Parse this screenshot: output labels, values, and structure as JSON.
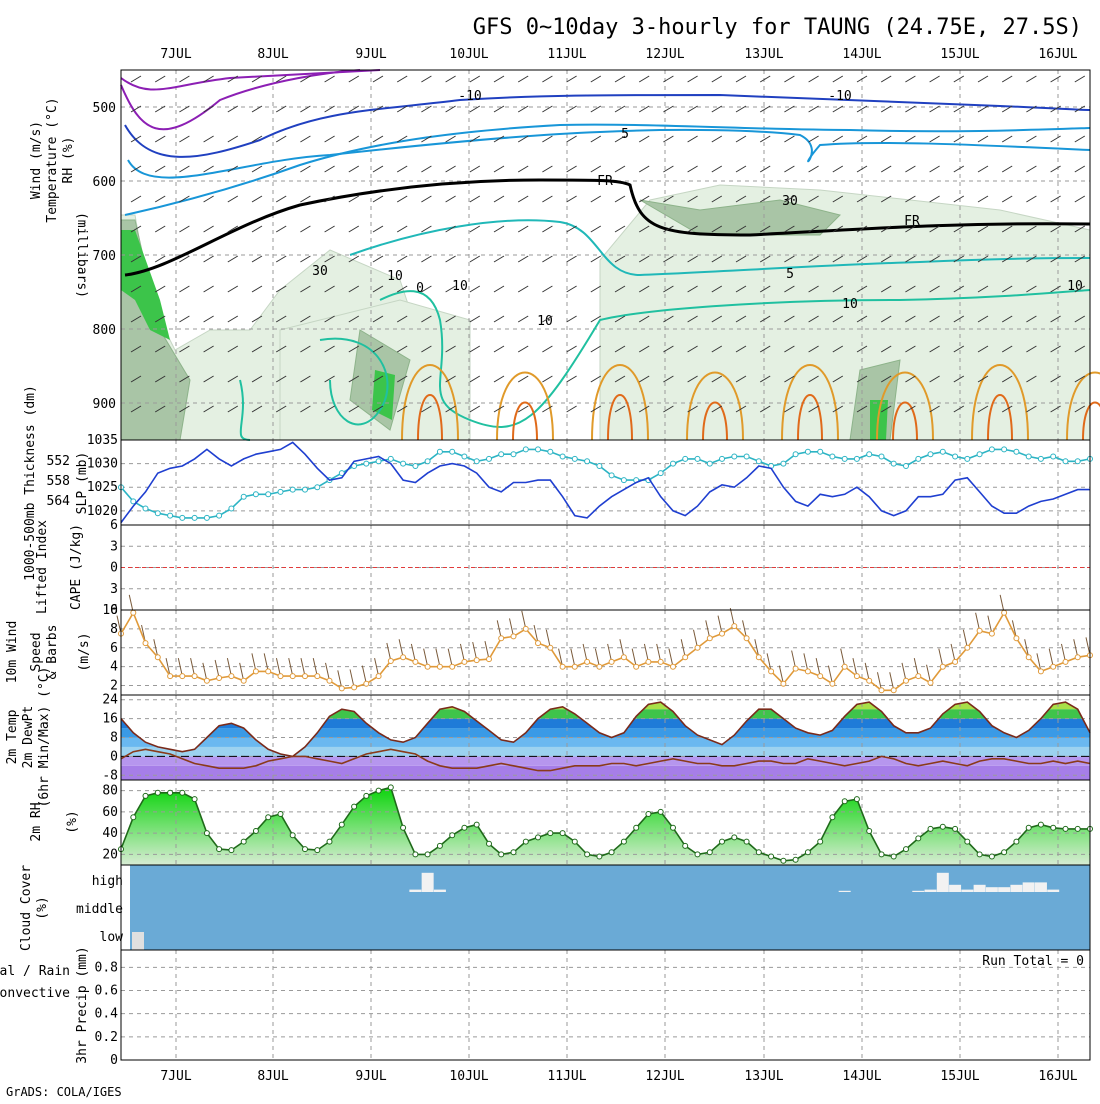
{
  "title": "GFS 0~10day 3-hourly for TAUNG (24.75E, 27.5S)",
  "credit": "GrADS: COLA/IGES",
  "run_total": "Run Total = 0",
  "colors": {
    "slp": "#1f3fd0",
    "thickness": "#2cb4c4",
    "wind": "#e09a3a",
    "temp_fill": "#2e7be0",
    "rh": "#22c41c",
    "cloud": "#6aaad6",
    "lifted": "#e23c3c",
    "cape": "#b46ee0"
  },
  "chart_data": [
    {
      "type": "contour",
      "panel": "upper_air",
      "ylabel_parts": [
        {
          "text": "Wind (m/s)",
          "color": "#000000"
        },
        {
          "text": "Temperature (°C)",
          "color": "#e06a1a"
        },
        {
          "text": "RH (%)",
          "color": "#000000"
        }
      ],
      "yaxis_label": "(millibars)",
      "yticks": [
        500,
        600,
        700,
        800,
        900
      ],
      "ylim": [
        450,
        950
      ],
      "x_days": [
        "7JUL",
        "8JUL",
        "9JUL",
        "10JUL",
        "11JUL",
        "12JUL",
        "13JUL",
        "14JUL",
        "15JUL",
        "16JUL"
      ],
      "contour_labels": [
        "-10",
        "-10",
        "5",
        "FR",
        "FR",
        "10",
        "5",
        "10",
        "0",
        "10",
        "10",
        "30",
        "30",
        "10"
      ]
    },
    {
      "type": "line",
      "panel": "slp_thickness",
      "ylabel_left": "1000-500mb Thickness (dm)",
      "ylabel_right": "SLP (mb)",
      "yticks_thickness": [
        552,
        558,
        564
      ],
      "yticks_slp": [
        1020,
        1025,
        1030,
        1035
      ],
      "ylim_slp": [
        1017,
        1035
      ],
      "series": [
        {
          "name": "SLP (mb)",
          "values": [
            1017.5,
            1021,
            1024,
            1028,
            1029,
            1029.5,
            1031,
            1033,
            1031,
            1029.5,
            1031,
            1032,
            1032.5,
            1033,
            1034.5,
            1032,
            1029,
            1026.5,
            1027,
            1030.5,
            1031,
            1031.5,
            1030,
            1026.5,
            1026,
            1028,
            1029.5,
            1030,
            1029.5,
            1028,
            1025,
            1024,
            1026,
            1026,
            1026.5,
            1026.5,
            1023,
            1019,
            1018.5,
            1021,
            1023,
            1024.5,
            1026,
            1027,
            1023,
            1020,
            1019,
            1021,
            1024,
            1025.5,
            1025,
            1027,
            1029.5,
            1029,
            1025,
            1022,
            1021,
            1023.5,
            1023,
            1023.5,
            1025,
            1023,
            1020,
            1019,
            1020,
            1023,
            1023,
            1023.5,
            1026.5,
            1027,
            1024,
            1021,
            1019.5,
            1019.5,
            1021,
            1022,
            1022.5,
            1023.5,
            1024.5,
            1024.5
          ]
        },
        {
          "name": "1000-500mb Thickness (dm)",
          "values": [
            1025,
            1022,
            1020.5,
            1019.5,
            1019,
            1018.5,
            1018.5,
            1018.5,
            1019,
            1020.5,
            1023,
            1023.5,
            1023.5,
            1024,
            1024.5,
            1024.5,
            1025,
            1026.5,
            1028,
            1029.5,
            1030,
            1030.5,
            1031,
            1030,
            1029.5,
            1030.5,
            1032.5,
            1032.5,
            1031.5,
            1030.5,
            1031,
            1032,
            1032,
            1033,
            1033,
            1032.5,
            1031.5,
            1031,
            1030.5,
            1029.5,
            1027.5,
            1026.5,
            1026.5,
            1026.5,
            1028,
            1030,
            1031,
            1031,
            1030,
            1031,
            1031.5,
            1031.5,
            1030.5,
            1029.5,
            1030,
            1032,
            1032.5,
            1032.5,
            1031.5,
            1031,
            1031,
            1032,
            1031.5,
            1030,
            1029.5,
            1031,
            1032,
            1032.5,
            1031.5,
            1031,
            1032,
            1033,
            1033,
            1032.5,
            1031.5,
            1031,
            1031.5,
            1030.5,
            1030.5,
            1031
          ]
        }
      ]
    },
    {
      "type": "line",
      "panel": "stability",
      "ylabel_parts": [
        {
          "text": "Lifted Index",
          "color": "#e23c3c"
        },
        {
          "text": "CAPE (J/kg)",
          "color": "#b46ee0"
        }
      ],
      "yticks": [
        "6",
        "3",
        "0",
        "3",
        "6"
      ],
      "ylim": [
        -6,
        6
      ],
      "reference_line": 0
    },
    {
      "type": "line",
      "panel": "wind10m",
      "ylabel_parts": [
        {
          "text": "10m Wind",
          "color": "#e06a1a"
        },
        {
          "text": "Speed",
          "color": "#e06a1a"
        },
        {
          "text": "& Barbs",
          "color": "#000000"
        },
        {
          "text": "(m/s)",
          "color": "#000000"
        }
      ],
      "yticks": [
        2,
        4,
        6,
        8,
        10
      ],
      "ylim": [
        1,
        10
      ],
      "series": [
        {
          "name": "10m Wind Speed",
          "values": [
            7.5,
            9.7,
            6.5,
            5.0,
            3.0,
            3.0,
            3.0,
            2.5,
            2.8,
            3.0,
            2.5,
            3.5,
            3.5,
            3.0,
            3.0,
            3.0,
            3.0,
            2.5,
            1.7,
            1.8,
            2.2,
            3.0,
            4.6,
            5.0,
            4.5,
            4.0,
            4.0,
            4.0,
            4.5,
            4.7,
            4.8,
            7.0,
            7.2,
            8.0,
            6.5,
            6.0,
            4.0,
            4.0,
            4.5,
            4.0,
            4.5,
            5.0,
            4.0,
            4.5,
            4.5,
            4.0,
            5.0,
            6.0,
            7.0,
            7.5,
            8.3,
            7.0,
            5.0,
            3.5,
            2.2,
            3.8,
            3.5,
            3.0,
            2.2,
            4.0,
            3.0,
            2.5,
            1.5,
            1.5,
            2.5,
            3.0,
            2.3,
            4.0,
            4.5,
            6.0,
            7.8,
            7.5,
            9.7,
            7.0,
            5.0,
            3.5,
            4.0,
            4.5,
            5.0,
            5.2
          ]
        }
      ]
    },
    {
      "type": "area",
      "panel": "temp2m",
      "ylabel_parts": [
        {
          "text": "2m Temp",
          "color": "#e06a1a"
        },
        {
          "text": "2m DewPt",
          "color": "#e06a1a"
        },
        {
          "text": "(6hr Min/Max) (°C)",
          "color": "#000000"
        }
      ],
      "yticks": [
        -8,
        0,
        8,
        16,
        24
      ],
      "ylim": [
        -10,
        26
      ],
      "series": [
        {
          "name": "2m Temp",
          "values": [
            16,
            10,
            6,
            4,
            3,
            2,
            3,
            8,
            13,
            14,
            12,
            7,
            3,
            1,
            0,
            4,
            10,
            17,
            20,
            19,
            14,
            10,
            7,
            6,
            8,
            14,
            20,
            21,
            19,
            15,
            11,
            7,
            6,
            10,
            16,
            20,
            21,
            18,
            14,
            10,
            8,
            10,
            17,
            22,
            23,
            19,
            13,
            9,
            7,
            5,
            9,
            15,
            20,
            20,
            16,
            12,
            10,
            9,
            11,
            17,
            22,
            23,
            19,
            13,
            10,
            10,
            12,
            18,
            22,
            23,
            19,
            13,
            10,
            8,
            11,
            16,
            22,
            23,
            20,
            10
          ]
        },
        {
          "name": "2m DewPt",
          "values": [
            -1,
            2,
            3,
            2,
            1,
            -1,
            -3,
            -4,
            -5,
            -5,
            -5,
            -4,
            -2,
            -1,
            0,
            0,
            -1,
            -2,
            -3,
            -1,
            1,
            2,
            3,
            2,
            1,
            -2,
            -4,
            -5,
            -5,
            -5,
            -4,
            -3,
            -4,
            -5,
            -6,
            -6,
            -5,
            -4,
            -4,
            -4,
            -3,
            -3,
            -4,
            -3,
            -2,
            -1,
            -2,
            -3,
            -3,
            -4,
            -4,
            -3,
            -2,
            -2,
            -3,
            -3,
            -1,
            -2,
            -3,
            -4,
            -3,
            -2,
            0,
            -1,
            -3,
            -4,
            -3,
            -2,
            -3,
            -4,
            -2,
            -1,
            -1,
            -2,
            -3,
            -3,
            -2,
            -3,
            -2,
            -3
          ]
        }
      ]
    },
    {
      "type": "area",
      "panel": "rh2m",
      "ylabel": "2m RH",
      "ylabel_unit": "(%)",
      "yticks": [
        20,
        40,
        60,
        80
      ],
      "ylim": [
        10,
        90
      ],
      "series": [
        {
          "name": "2m RH",
          "values": [
            25,
            55,
            75,
            78,
            78,
            78,
            72,
            40,
            25,
            24,
            32,
            42,
            55,
            58,
            38,
            25,
            24,
            32,
            48,
            65,
            75,
            80,
            83,
            45,
            20,
            20,
            28,
            38,
            45,
            48,
            30,
            20,
            22,
            32,
            36,
            40,
            40,
            32,
            20,
            18,
            22,
            32,
            45,
            58,
            60,
            45,
            28,
            20,
            22,
            32,
            36,
            32,
            22,
            18,
            14,
            15,
            22,
            32,
            55,
            70,
            72,
            42,
            20,
            18,
            25,
            35,
            44,
            46,
            44,
            32,
            20,
            18,
            22,
            32,
            45,
            48,
            45,
            44,
            44,
            44
          ]
        }
      ]
    },
    {
      "type": "bar",
      "panel": "cloud_cover",
      "ylabel": "Cloud Cover",
      "ylabel_unit": "(%)",
      "yticks": [
        "high",
        "middle",
        "low"
      ],
      "series": [
        {
          "name": "high",
          "values": [
            0,
            0,
            0,
            0,
            0,
            0,
            0,
            0,
            0,
            0,
            0,
            0,
            0,
            0,
            0,
            0,
            0,
            0,
            0,
            0,
            0,
            0,
            0,
            0,
            10,
            80,
            10,
            0,
            0,
            0,
            0,
            0,
            0,
            0,
            0,
            0,
            0,
            0,
            0,
            0,
            0,
            0,
            0,
            0,
            0,
            0,
            0,
            0,
            0,
            0,
            0,
            0,
            0,
            0,
            0,
            0,
            0,
            0,
            0,
            5,
            0,
            0,
            0,
            0,
            0,
            5,
            10,
            80,
            30,
            10,
            30,
            20,
            20,
            30,
            40,
            40,
            10,
            0,
            0,
            0
          ]
        },
        {
          "name": "low",
          "values": [
            50,
            0,
            0,
            0,
            0,
            0,
            0,
            0,
            0,
            0,
            0,
            0,
            0,
            0,
            0,
            0,
            0,
            0,
            0,
            0,
            0,
            0,
            0,
            0,
            0,
            0,
            0,
            0,
            0,
            0,
            0,
            0,
            0,
            0,
            0,
            0,
            0,
            0,
            0,
            0,
            0,
            0,
            0,
            0,
            0,
            0,
            0,
            0,
            0,
            0,
            0,
            0,
            0,
            0,
            0,
            0,
            0,
            0,
            0,
            0,
            0,
            0,
            0,
            0,
            0,
            0,
            0,
            0,
            0,
            0,
            0,
            0,
            0,
            0,
            0,
            0,
            0,
            0,
            0,
            0
          ]
        }
      ]
    },
    {
      "type": "bar",
      "panel": "precip",
      "ylabel_parts": [
        {
          "text": "Total / Rain",
          "color": "#22b41c"
        },
        {
          "text": "Convective",
          "color": "#e23c3c"
        },
        {
          "text": "3hr Precip (mm)",
          "color": "#000000"
        }
      ],
      "yticks": [
        0,
        0.2,
        0.4,
        0.6,
        0.8
      ],
      "ylim": [
        0,
        0.95
      ],
      "series": [
        {
          "name": "Total / Rain",
          "values": [
            0,
            0,
            0,
            0,
            0,
            0,
            0,
            0,
            0,
            0,
            0,
            0,
            0,
            0,
            0,
            0,
            0,
            0,
            0,
            0,
            0,
            0,
            0,
            0,
            0,
            0,
            0,
            0,
            0,
            0,
            0,
            0,
            0,
            0,
            0,
            0,
            0,
            0,
            0,
            0,
            0,
            0,
            0,
            0,
            0,
            0,
            0,
            0,
            0,
            0,
            0,
            0,
            0,
            0,
            0,
            0,
            0,
            0,
            0,
            0,
            0,
            0,
            0,
            0,
            0,
            0,
            0,
            0,
            0,
            0,
            0,
            0,
            0,
            0,
            0,
            0,
            0,
            0,
            0,
            0
          ]
        }
      ]
    }
  ]
}
